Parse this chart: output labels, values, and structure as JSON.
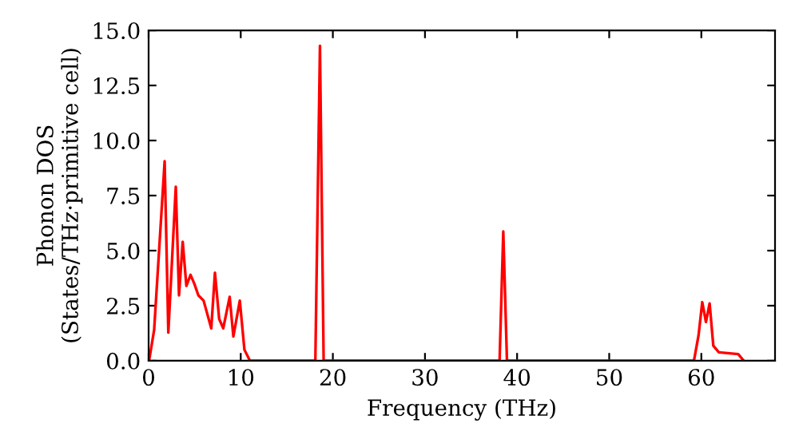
{
  "chart_data": {
    "type": "line",
    "xlabel": "Frequency (THz)",
    "ylabel": "Phonon DOS\n(States/THz·primitive cell)",
    "xlim": [
      0,
      68
    ],
    "ylim": [
      0,
      15
    ],
    "xticks": [
      0,
      10,
      20,
      30,
      40,
      50,
      60
    ],
    "yticks": [
      {
        "value": 0,
        "label": "0.0"
      },
      {
        "value": 2.5,
        "label": "2.5"
      },
      {
        "value": 5,
        "label": "5.0"
      },
      {
        "value": 7.5,
        "label": "7.5"
      },
      {
        "value": 10,
        "label": "10.0"
      },
      {
        "value": 12.5,
        "label": "12.5"
      },
      {
        "value": 15,
        "label": "15.0"
      }
    ],
    "grid": false,
    "legend": false,
    "line_style": "solid",
    "marker": "none",
    "series": [
      {
        "color": "#ff0000",
        "x": [
          0.05,
          0.6,
          1.74,
          2.14,
          2.95,
          3.3,
          3.7,
          4.1,
          4.55,
          4.96,
          5.4,
          5.97,
          6.8,
          7.2,
          7.66,
          8.1,
          8.8,
          9.2,
          9.9,
          10.4,
          11.0,
          18.1,
          18.6,
          19.0,
          38.1,
          38.5,
          38.9,
          59.2,
          59.7,
          60.1,
          60.5,
          60.9,
          61.3,
          61.9,
          64.0,
          64.6
        ],
        "values": [
          0,
          1.4,
          9.06,
          1.28,
          7.9,
          2.97,
          5.4,
          3.4,
          3.9,
          3.5,
          2.97,
          2.73,
          1.47,
          4.0,
          1.9,
          1.47,
          2.9,
          1.1,
          2.73,
          0.5,
          0,
          0,
          14.3,
          0,
          0,
          5.87,
          0,
          0,
          1.16,
          2.66,
          1.76,
          2.6,
          0.68,
          0.38,
          0.3,
          0
        ]
      }
    ]
  }
}
